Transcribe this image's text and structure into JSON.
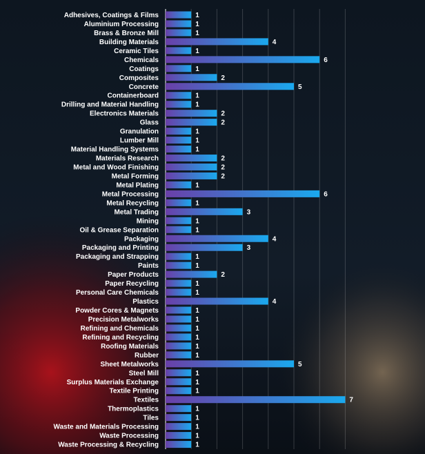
{
  "chart_data": {
    "type": "bar",
    "orientation": "horizontal",
    "categories": [
      "Adhesives, Coatings & Films",
      "Aluminium Processing",
      "Brass & Bronze Mill",
      "Building Materials",
      "Ceramic Tiles",
      "Chemicals",
      "Coatings",
      "Composites",
      "Concrete",
      "Containerboard",
      "Drilling and Material Handling",
      "Electronics Materials",
      "Glass",
      "Granulation",
      "Lumber Mill",
      "Material Handling Systems",
      "Materials Research",
      "Metal and Wood Finishing",
      "Metal Forming",
      "Metal Plating",
      "Metal Processing",
      "Metal Recycling",
      "Metal Trading",
      "Mining",
      "Oil & Grease Separation",
      "Packaging",
      "Packaging and Printing",
      "Packaging and Strapping",
      "Paints",
      "Paper Products",
      "Paper Recycling",
      "Personal Care Chemicals",
      "Plastics",
      "Powder Cores & Magnets",
      "Precision Metalworks",
      "Refining and Chemicals",
      "Refining and Recycling",
      "Roofing Materials",
      "Rubber",
      "Sheet Metalworks",
      "Steel Mill",
      "Surplus Materials Exchange",
      "Textile Printing",
      "Textiles",
      "Thermoplastics",
      "Tiles",
      "Waste and Materials Processing",
      "Waste Processing",
      "Waste Processing & Recycling"
    ],
    "values": [
      1,
      1,
      1,
      4,
      1,
      6,
      1,
      2,
      5,
      1,
      1,
      2,
      2,
      1,
      1,
      1,
      2,
      2,
      2,
      1,
      6,
      1,
      3,
      1,
      1,
      4,
      3,
      1,
      1,
      2,
      1,
      1,
      4,
      1,
      1,
      1,
      1,
      1,
      1,
      5,
      1,
      1,
      1,
      7,
      1,
      1,
      1,
      1,
      1
    ],
    "xlim": [
      0,
      7.2
    ],
    "grid": true,
    "data_labels": true,
    "bar_gradient": [
      "#6a3fa8",
      "#1aa9ee"
    ]
  }
}
